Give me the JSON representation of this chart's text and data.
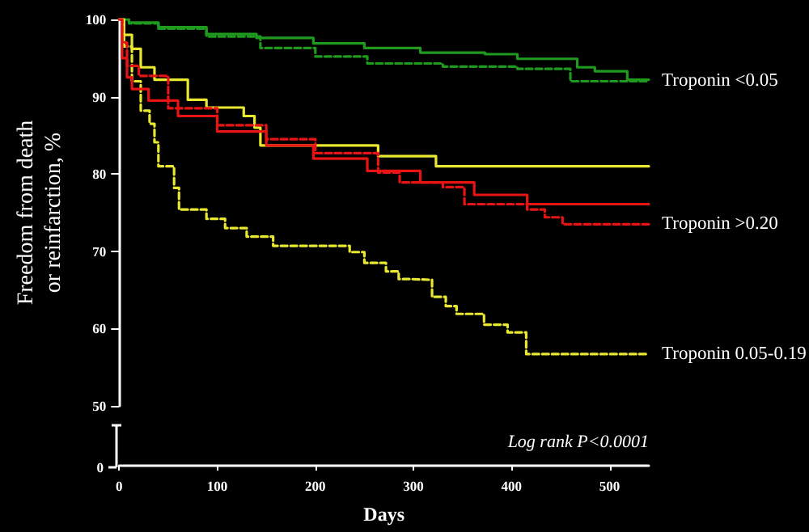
{
  "chart_data": {
    "type": "step",
    "xlabel": "Days",
    "ylabel": "Freedom from death or reinfarction, %",
    "annotations": [
      "0",
      "Log rank P<0.0001"
    ],
    "xlim": [
      0,
      540
    ],
    "xticks": [
      0,
      100,
      200,
      300,
      400,
      500
    ],
    "ylim": [
      50,
      100
    ],
    "yticks": [
      50,
      60,
      70,
      80,
      90,
      100
    ],
    "grid": false,
    "legend": false,
    "marker": "none",
    "series": [
      {
        "color": "#1f9a1f",
        "line_style": "solid",
        "x": [
          0,
          10,
          40,
          89,
          140,
          198,
          250,
          307,
          373,
          406,
          467,
          485,
          518,
          540
        ],
        "values": [
          100,
          99.6,
          99,
          98.1,
          97.6,
          96.9,
          96.3,
          95.7,
          95.5,
          94.9,
          93.8,
          93.3,
          92.2,
          92.2
        ]
      },
      {
        "name": "Troponin <0.05",
        "color": "#1f9a1f",
        "line_style": "dashed",
        "x": [
          0,
          10,
          40,
          89,
          144,
          200,
          253,
          330,
          406,
          460,
          540
        ],
        "values": [
          100,
          99.5,
          98.8,
          97.8,
          96.3,
          95.2,
          94.3,
          93.9,
          93.6,
          92,
          92
        ]
      },
      {
        "color": "#e8e830",
        "line_style": "solid",
        "x": [
          0,
          5,
          13,
          22,
          36,
          70,
          89,
          127,
          138,
          144,
          264,
          323,
          540
        ],
        "values": [
          100,
          98,
          96.2,
          93.8,
          92.2,
          89.6,
          88.6,
          87.5,
          86,
          83.7,
          82.3,
          81,
          81
        ]
      },
      {
        "name": "Troponin 0.05-0.19",
        "color": "#e8e830",
        "line_style": "dashed",
        "x": [
          0,
          5,
          13,
          22,
          31,
          36,
          40,
          56,
          61,
          89,
          108,
          130,
          157,
          235,
          250,
          272,
          285,
          298,
          319,
          333,
          344,
          372,
          396,
          415,
          540
        ],
        "values": [
          100,
          96.5,
          92,
          88.2,
          86.5,
          84.1,
          81,
          78.2,
          75.4,
          74.2,
          73,
          71.9,
          70.7,
          69.9,
          68.5,
          67.4,
          66.4,
          66.3,
          64.1,
          62.9,
          61.9,
          60.5,
          59.5,
          56.7,
          56.7
        ]
      },
      {
        "color": "#e81414",
        "line_style": "solid",
        "x": [
          0,
          3,
          8,
          13,
          30,
          60,
          100,
          150,
          198,
          253,
          307,
          362,
          416,
          540
        ],
        "values": [
          100,
          95,
          92.5,
          91,
          89.5,
          87.5,
          85.5,
          83.7,
          82,
          80.4,
          78.9,
          77.3,
          76.1,
          76.1
        ]
      },
      {
        "name": "Troponin >0.20",
        "color": "#e81414",
        "line_style": "dashed",
        "x": [
          0,
          3,
          8,
          20,
          50,
          100,
          150,
          200,
          264,
          286,
          330,
          352,
          416,
          434,
          452,
          540
        ],
        "values": [
          100,
          97,
          94,
          92.7,
          88.5,
          86.3,
          84.5,
          82.7,
          80.2,
          78.9,
          78.3,
          76.1,
          75.4,
          74.4,
          73.5,
          73.5
        ]
      }
    ]
  }
}
